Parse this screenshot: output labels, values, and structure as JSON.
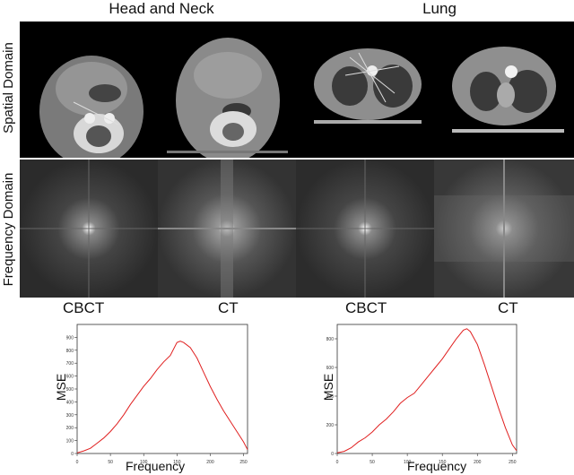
{
  "figure": {
    "column_titles": [
      "Head and Neck",
      "Lung"
    ],
    "row_labels": [
      "Spatial Domain",
      "Frequency Domain"
    ],
    "modality_labels": [
      "CBCT",
      "CT",
      "CBCT",
      "CT"
    ],
    "panels": {
      "spatial": [
        {
          "site": "head-neck",
          "modality": "CBCT"
        },
        {
          "site": "head-neck",
          "modality": "CT"
        },
        {
          "site": "lung",
          "modality": "CBCT"
        },
        {
          "site": "lung",
          "modality": "CT"
        }
      ],
      "frequency": [
        {
          "site": "head-neck",
          "modality": "CBCT"
        },
        {
          "site": "head-neck",
          "modality": "CT"
        },
        {
          "site": "lung",
          "modality": "CBCT"
        },
        {
          "site": "lung",
          "modality": "CT"
        }
      ]
    }
  },
  "chart_data": [
    {
      "type": "line",
      "xlabel": "Frequency",
      "ylabel": "MSE",
      "xlim": [
        0,
        256
      ],
      "ylim": [
        0,
        1000
      ],
      "xticks": [
        0,
        50,
        100,
        150,
        200,
        250
      ],
      "yticks": [
        0,
        100,
        200,
        300,
        400,
        500,
        600,
        700,
        800,
        900
      ],
      "color": "#e02020",
      "x": [
        0,
        10,
        20,
        30,
        40,
        50,
        60,
        70,
        80,
        90,
        100,
        110,
        120,
        130,
        140,
        150,
        155,
        160,
        170,
        180,
        190,
        200,
        210,
        220,
        230,
        240,
        250,
        256
      ],
      "y": [
        5,
        20,
        40,
        80,
        120,
        170,
        230,
        300,
        380,
        450,
        520,
        580,
        650,
        710,
        760,
        860,
        870,
        860,
        820,
        740,
        630,
        520,
        420,
        330,
        250,
        170,
        90,
        30
      ]
    },
    {
      "type": "line",
      "xlabel": "Frequency",
      "ylabel": "MSE",
      "xlim": [
        0,
        256
      ],
      "ylim": [
        0,
        900
      ],
      "xticks": [
        0,
        50,
        100,
        150,
        200,
        250
      ],
      "yticks": [
        0,
        200,
        400,
        600,
        800
      ],
      "color": "#e02020",
      "x": [
        0,
        10,
        20,
        30,
        40,
        50,
        60,
        70,
        80,
        90,
        100,
        110,
        120,
        130,
        140,
        150,
        160,
        170,
        180,
        185,
        190,
        200,
        210,
        220,
        230,
        240,
        250,
        256
      ],
      "y": [
        5,
        15,
        40,
        80,
        110,
        150,
        200,
        240,
        290,
        350,
        390,
        420,
        480,
        540,
        600,
        660,
        730,
        800,
        860,
        870,
        850,
        760,
        620,
        470,
        320,
        180,
        60,
        20
      ]
    }
  ]
}
